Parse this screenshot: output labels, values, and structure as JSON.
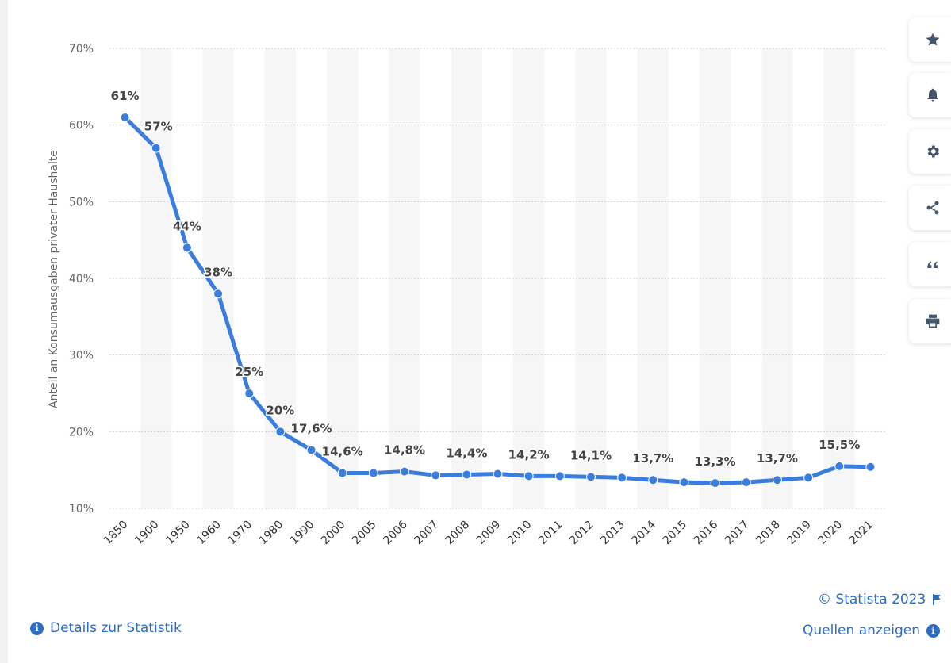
{
  "chart_data": {
    "type": "line",
    "categories": [
      "1850",
      "1900",
      "1950",
      "1960",
      "1970",
      "1980",
      "1990",
      "2000",
      "2005",
      "2006",
      "2007",
      "2008",
      "2009",
      "2010",
      "2011",
      "2012",
      "2013",
      "2014",
      "2015",
      "2016",
      "2017",
      "2018",
      "2019",
      "2020",
      "2021"
    ],
    "values": [
      61,
      57,
      44,
      38,
      25,
      20,
      17.6,
      14.6,
      14.6,
      14.8,
      14.3,
      14.4,
      14.5,
      14.2,
      14.2,
      14.1,
      14.0,
      13.7,
      13.4,
      13.3,
      13.4,
      13.7,
      14.0,
      15.5,
      15.4
    ],
    "data_labels": [
      "61%",
      "57%",
      "44%",
      "38%",
      "25%",
      "20%",
      "17,6%",
      "14,6%",
      "",
      "14,8%",
      "",
      "14,4%",
      "",
      "14,2%",
      "",
      "14,1%",
      "",
      "13,7%",
      "",
      "13,3%",
      "",
      "13,7%",
      "",
      "15,5%",
      ""
    ],
    "ylabel": "Anteil an Konsumausgaben privater Haushalte",
    "yticks": [
      "10%",
      "20%",
      "30%",
      "40%",
      "50%",
      "60%",
      "70%"
    ],
    "ylim": [
      10,
      70
    ],
    "grid": true,
    "series_color": "#3b7ddd"
  },
  "footer": {
    "copyright": "© Statista 2023",
    "details_link": "Details zur Statistik",
    "sources_link": "Quellen anzeigen"
  },
  "sidebar_icons": [
    "star-icon",
    "bell-icon",
    "gear-icon",
    "share-icon",
    "quote-icon",
    "print-icon"
  ]
}
